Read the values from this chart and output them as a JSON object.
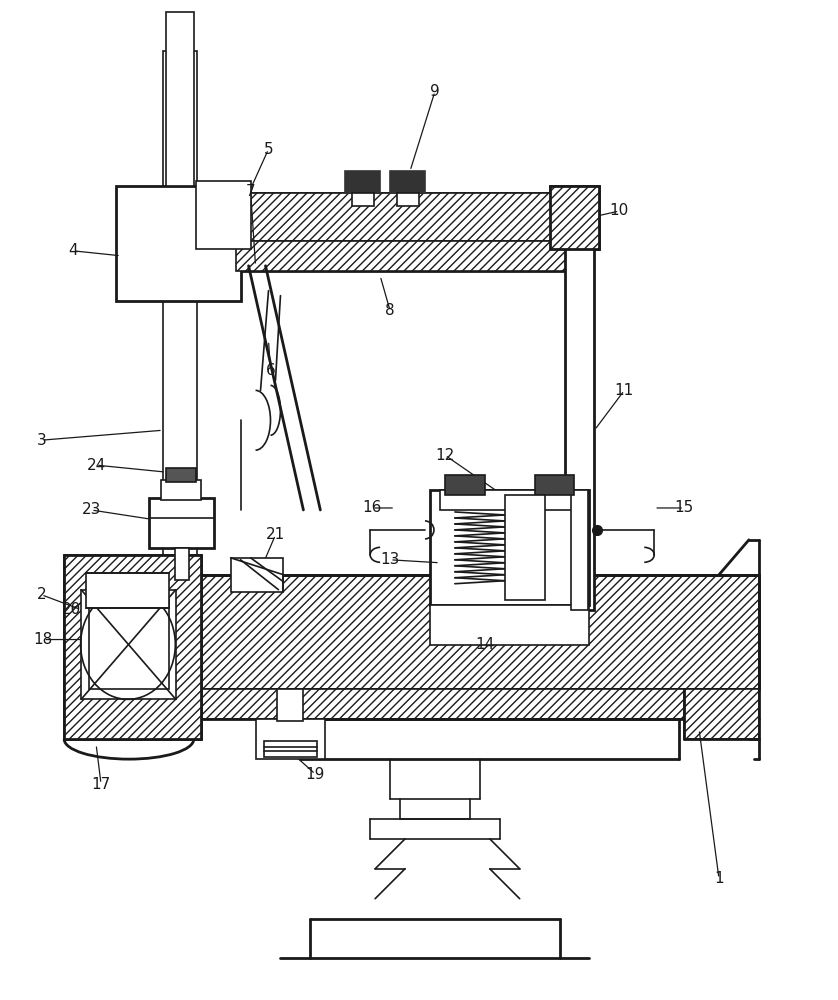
{
  "bg_color": "#ffffff",
  "lc": "#1a1a1a",
  "lw": 1.2,
  "blw": 2.0,
  "fig_w": 8.38,
  "fig_h": 10.0,
  "dpi": 100
}
